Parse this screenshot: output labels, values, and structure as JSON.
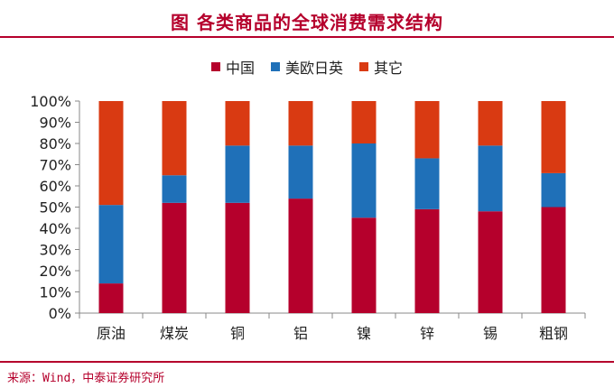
{
  "title": "图  各类商品的全球消费需求结构",
  "source": "来源：Wind，中泰证券研究所",
  "chart_data": {
    "type": "bar",
    "stacked": true,
    "categories": [
      "原油",
      "煤炭",
      "铜",
      "铝",
      "镍",
      "锌",
      "锡",
      "粗钢"
    ],
    "series": [
      {
        "name": "中国",
        "color": "#b5002c",
        "values": [
          14,
          52,
          52,
          54,
          45,
          49,
          48,
          50
        ]
      },
      {
        "name": "美欧日英",
        "color": "#1f70b8",
        "values": [
          37,
          13,
          27,
          25,
          35,
          24,
          31,
          16
        ]
      },
      {
        "name": "其它",
        "color": "#d93a12",
        "values": [
          49,
          35,
          21,
          21,
          20,
          27,
          21,
          34
        ]
      }
    ],
    "yticks": [
      "0%",
      "10%",
      "20%",
      "30%",
      "40%",
      "50%",
      "60%",
      "70%",
      "80%",
      "90%",
      "100%"
    ],
    "ylim": [
      0,
      100
    ],
    "legend_position": "top"
  }
}
